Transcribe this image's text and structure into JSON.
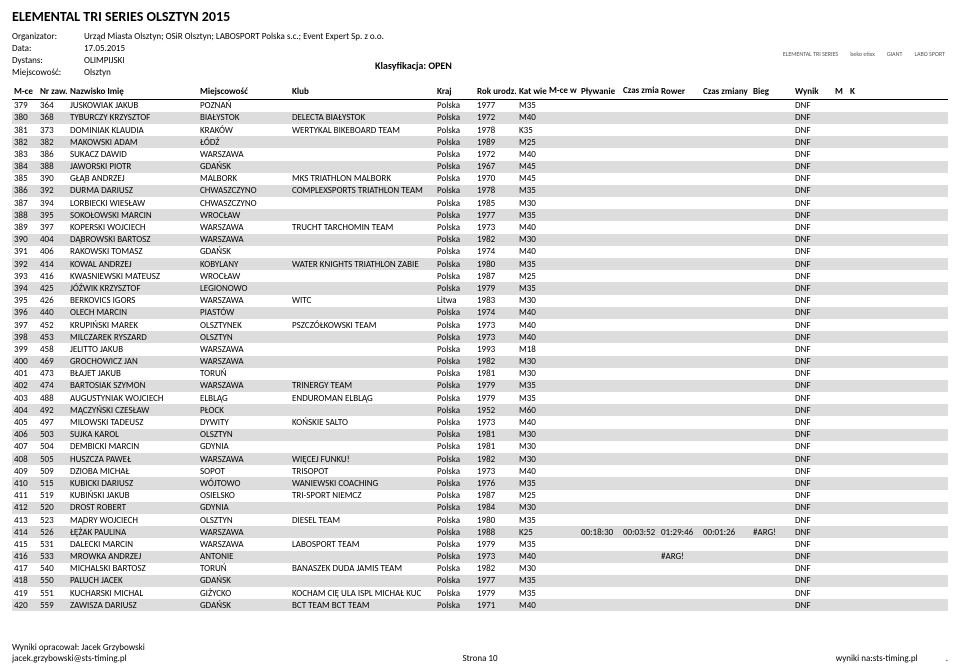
{
  "title": "ELEMENTAL TRI SERIES OLSZTYN 2015",
  "meta": {
    "organizator_label": "Organizator:",
    "organizator": "Urząd Miasta Olsztyn; OSiR Olsztyn; LABOSPORT Polska s.c.; Event Expert Sp. z o.o.",
    "data_label": "Data:",
    "data": "17.05.2015",
    "dystans_label": "Dystans:",
    "dystans": "OLIMPIJSKI",
    "miejscowosc_label": "Miejscowość:",
    "miejscowosc": "Olsztyn",
    "klasyfikacja_label": "Klasyfikacja:",
    "klasyfikacja": "OPEN"
  },
  "sponsor_text": [
    "ELEMENTAL TRI SERIES",
    "beko etixx",
    "GIANT",
    "LABO SPORT"
  ],
  "headers": {
    "mce": "M-ce",
    "nrzaw": "Nr zaw.",
    "name": "Nazwisko Imię",
    "city": "Miejscowość",
    "club": "Klub",
    "kraj": "Kraj",
    "rok": "Rok urodz.",
    "kat": "Kat wiek.",
    "mcekat": "M-ce w kat",
    "plyw": "Pływanie",
    "czz": "Czas zmiany",
    "rower": "Rower",
    "czz2": "Czas zmiany",
    "bieg": "Bieg",
    "wynik": "Wynik",
    "m": "M",
    "k": "K"
  },
  "rows": [
    {
      "mce": "379",
      "nr": "364",
      "name": "JUSKOWIAK JAKUB",
      "city": "POZNAŃ",
      "club": "",
      "kraj": "Polska",
      "rok": "1977",
      "kat": "M35",
      "wynik": "DNF"
    },
    {
      "mce": "380",
      "nr": "368",
      "name": "TYBURCZY KRZYSZTOF",
      "city": "BIAŁYSTOK",
      "club": "DELECTA BIAŁYSTOK",
      "kraj": "Polska",
      "rok": "1972",
      "kat": "M40",
      "wynik": "DNF"
    },
    {
      "mce": "381",
      "nr": "373",
      "name": "DOMINIAK KLAUDIA",
      "city": "KRAKÓW",
      "club": "WERTYKAL BIKEBOARD TEAM",
      "kraj": "Polska",
      "rok": "1978",
      "kat": "K35",
      "wynik": "DNF"
    },
    {
      "mce": "382",
      "nr": "382",
      "name": "MAKOWSKI ADAM",
      "city": "ŁÓDŹ",
      "club": "",
      "kraj": "Polska",
      "rok": "1989",
      "kat": "M25",
      "wynik": "DNF"
    },
    {
      "mce": "383",
      "nr": "386",
      "name": "SUKACZ DAWID",
      "city": "WARSZAWA",
      "club": "",
      "kraj": "Polska",
      "rok": "1972",
      "kat": "M40",
      "wynik": "DNF"
    },
    {
      "mce": "384",
      "nr": "388",
      "name": "JAWORSKI PIOTR",
      "city": "GDAŃSK",
      "club": "",
      "kraj": "Polska",
      "rok": "1967",
      "kat": "M45",
      "wynik": "DNF"
    },
    {
      "mce": "385",
      "nr": "390",
      "name": "GŁĄB ANDRZEJ",
      "city": "MALBORK",
      "club": "MKS TRIATHLON MALBORK",
      "kraj": "Polska",
      "rok": "1970",
      "kat": "M45",
      "wynik": "DNF"
    },
    {
      "mce": "386",
      "nr": "392",
      "name": "DURMA DARIUSZ",
      "city": "CHWASZCZYNO",
      "club": "COMPLEXSPORTS TRIATHLON TEAM",
      "kraj": "Polska",
      "rok": "1978",
      "kat": "M35",
      "wynik": "DNF"
    },
    {
      "mce": "387",
      "nr": "394",
      "name": "LORBIECKI WIESŁAW",
      "city": "CHWASZCZYNO",
      "club": "",
      "kraj": "Polska",
      "rok": "1985",
      "kat": "M30",
      "wynik": "DNF"
    },
    {
      "mce": "388",
      "nr": "395",
      "name": "SOKOŁOWSKI MARCIN",
      "city": "WROCŁAW",
      "club": "",
      "kraj": "Polska",
      "rok": "1977",
      "kat": "M35",
      "wynik": "DNF"
    },
    {
      "mce": "389",
      "nr": "397",
      "name": "KOPERSKI WOJCIECH",
      "city": "WARSZAWA",
      "club": "TRUCHT TARCHOMIN TEAM",
      "kraj": "Polska",
      "rok": "1973",
      "kat": "M40",
      "wynik": "DNF"
    },
    {
      "mce": "390",
      "nr": "404",
      "name": "DĄBROWSKI BARTOSZ",
      "city": "WARSZAWA",
      "club": "",
      "kraj": "Polska",
      "rok": "1982",
      "kat": "M30",
      "wynik": "DNF"
    },
    {
      "mce": "391",
      "nr": "406",
      "name": "RAKOWSKI TOMASZ",
      "city": "GDAŃSK",
      "club": "",
      "kraj": "Polska",
      "rok": "1974",
      "kat": "M40",
      "wynik": "DNF"
    },
    {
      "mce": "392",
      "nr": "414",
      "name": "KOWAL ANDRZEJ",
      "city": "KOBYLANY",
      "club": "WATER KNIGHTS TRIATHLON ZABIE",
      "kraj": "Polska",
      "rok": "1980",
      "kat": "M35",
      "wynik": "DNF"
    },
    {
      "mce": "393",
      "nr": "416",
      "name": "KWASNIEWSKI MATEUSZ",
      "city": "WROCŁAW",
      "club": "",
      "kraj": "Polska",
      "rok": "1987",
      "kat": "M25",
      "wynik": "DNF"
    },
    {
      "mce": "394",
      "nr": "425",
      "name": "JÓŹWIK KRZYSZTOF",
      "city": "LEGIONOWO",
      "club": "",
      "kraj": "Polska",
      "rok": "1979",
      "kat": "M35",
      "wynik": "DNF"
    },
    {
      "mce": "395",
      "nr": "426",
      "name": "BERKOVICS IGORS",
      "city": "WARSZAWA",
      "club": "WITC",
      "kraj": "Litwa",
      "rok": "1983",
      "kat": "M30",
      "wynik": "DNF"
    },
    {
      "mce": "396",
      "nr": "440",
      "name": "OLECH MARCIN",
      "city": "PIASTÓW",
      "club": "",
      "kraj": "Polska",
      "rok": "1974",
      "kat": "M40",
      "wynik": "DNF"
    },
    {
      "mce": "397",
      "nr": "452",
      "name": "KRUPIŃSKI MAREK",
      "city": "OLSZTYNEK",
      "club": "PSZCZÓŁKOWSKI TEAM",
      "kraj": "Polska",
      "rok": "1973",
      "kat": "M40",
      "wynik": "DNF"
    },
    {
      "mce": "398",
      "nr": "453",
      "name": "MILCZAREK RYSZARD",
      "city": "OLSZTYN",
      "club": "",
      "kraj": "Polska",
      "rok": "1973",
      "kat": "M40",
      "wynik": "DNF"
    },
    {
      "mce": "399",
      "nr": "458",
      "name": "JELITTO JAKUB",
      "city": "WARSZAWA",
      "club": "",
      "kraj": "Polska",
      "rok": "1993",
      "kat": "M18",
      "wynik": "DNF"
    },
    {
      "mce": "400",
      "nr": "469",
      "name": "GROCHOWICZ JAN",
      "city": "WARSZAWA",
      "club": "",
      "kraj": "Polska",
      "rok": "1982",
      "kat": "M30",
      "wynik": "DNF"
    },
    {
      "mce": "401",
      "nr": "473",
      "name": "BŁAJET JAKUB",
      "city": "TORUŃ",
      "club": "",
      "kraj": "Polska",
      "rok": "1981",
      "kat": "M30",
      "wynik": "DNF"
    },
    {
      "mce": "402",
      "nr": "474",
      "name": "BARTOSIAK SZYMON",
      "city": "WARSZAWA",
      "club": "TRINERGY TEAM",
      "kraj": "Polska",
      "rok": "1979",
      "kat": "M35",
      "wynik": "DNF"
    },
    {
      "mce": "403",
      "nr": "488",
      "name": "AUGUSTYNIAK WOJCIECH",
      "city": "ELBLĄG",
      "club": "ENDUROMAN ELBLĄG",
      "kraj": "Polska",
      "rok": "1979",
      "kat": "M35",
      "wynik": "DNF"
    },
    {
      "mce": "404",
      "nr": "492",
      "name": "MĄCZYŃSKI CZESŁAW",
      "city": "PŁOCK",
      "club": "",
      "kraj": "Polska",
      "rok": "1952",
      "kat": "M60",
      "wynik": "DNF"
    },
    {
      "mce": "405",
      "nr": "497",
      "name": "MILOWSKI TADEUSZ",
      "city": "DYWITY",
      "club": "KOŃSKIE SALTO",
      "kraj": "Polska",
      "rok": "1973",
      "kat": "M40",
      "wynik": "DNF"
    },
    {
      "mce": "406",
      "nr": "503",
      "name": "SUJKA KAROL",
      "city": "OLSZTYN",
      "club": "",
      "kraj": "Polska",
      "rok": "1981",
      "kat": "M30",
      "wynik": "DNF"
    },
    {
      "mce": "407",
      "nr": "504",
      "name": "DEMBICKI MARCIN",
      "city": "GDYNIA",
      "club": "",
      "kraj": "Polska",
      "rok": "1981",
      "kat": "M30",
      "wynik": "DNF"
    },
    {
      "mce": "408",
      "nr": "505",
      "name": "HUSZCZA PAWEŁ",
      "city": "WARSZAWA",
      "club": "WIĘCEJ FUNKU!",
      "kraj": "Polska",
      "rok": "1982",
      "kat": "M30",
      "wynik": "DNF"
    },
    {
      "mce": "409",
      "nr": "509",
      "name": "DZIOBA MICHAŁ",
      "city": "SOPOT",
      "club": "TRISOPOT",
      "kraj": "Polska",
      "rok": "1973",
      "kat": "M40",
      "wynik": "DNF"
    },
    {
      "mce": "410",
      "nr": "515",
      "name": "KUBICKI DARIUSZ",
      "city": "WÓJTOWO",
      "club": "WANIEWSKI COACHING",
      "kraj": "Polska",
      "rok": "1976",
      "kat": "M35",
      "wynik": "DNF"
    },
    {
      "mce": "411",
      "nr": "519",
      "name": "KUBIŃSKI JAKUB",
      "city": "OSIELSKO",
      "club": "TRI-SPORT NIEMCZ",
      "kraj": "Polska",
      "rok": "1987",
      "kat": "M25",
      "wynik": "DNF"
    },
    {
      "mce": "412",
      "nr": "520",
      "name": "DROST ROBERT",
      "city": "GDYNIA",
      "club": "",
      "kraj": "Polska",
      "rok": "1984",
      "kat": "M30",
      "wynik": "DNF"
    },
    {
      "mce": "413",
      "nr": "523",
      "name": "MĄDRY WOJCIECH",
      "city": "OLSZTYN",
      "club": "DIESEL TEAM",
      "kraj": "Polska",
      "rok": "1980",
      "kat": "M35",
      "wynik": "DNF"
    },
    {
      "mce": "414",
      "nr": "526",
      "name": "ŁĘŻAK PAULINA",
      "city": "WARSZAWA",
      "club": "",
      "kraj": "Polska",
      "rok": "1988",
      "kat": "K25",
      "plyw": "00:18:30",
      "czz": "00:03:52",
      "rower": "01:29:46",
      "czz2": "00:01:26",
      "bieg": "#ARG!",
      "wynik": "DNF"
    },
    {
      "mce": "415",
      "nr": "531",
      "name": "DALECKI MARCIN",
      "city": "WARSZAWA",
      "club": "LABOSPORT TEAM",
      "kraj": "Polska",
      "rok": "1979",
      "kat": "M35",
      "wynik": "DNF"
    },
    {
      "mce": "416",
      "nr": "533",
      "name": "MROWKA ANDRZEJ",
      "city": "ANTONIE",
      "club": "",
      "kraj": "Polska",
      "rok": "1973",
      "kat": "M40",
      "rower": "#ARG!",
      "wynik": "DNF"
    },
    {
      "mce": "417",
      "nr": "540",
      "name": "MICHALSKI BARTOSZ",
      "city": "TORUŃ",
      "club": "BANASZEK DUDA JAMIS TEAM",
      "kraj": "Polska",
      "rok": "1982",
      "kat": "M30",
      "wynik": "DNF"
    },
    {
      "mce": "418",
      "nr": "550",
      "name": "PALUCH JACEK",
      "city": "GDAŃSK",
      "club": "",
      "kraj": "Polska",
      "rok": "1977",
      "kat": "M35",
      "wynik": "DNF"
    },
    {
      "mce": "419",
      "nr": "551",
      "name": "KUCHARSKI MICHAL",
      "city": "GIŻYCKO",
      "club": "KOCHAM CIĘ ULA ISPL MICHAŁ KUC",
      "kraj": "Polska",
      "rok": "1979",
      "kat": "M35",
      "wynik": "DNF"
    },
    {
      "mce": "420",
      "nr": "559",
      "name": "ZAWISZA DARIUSZ",
      "city": "GDAŃSK",
      "club": "BCT TEAM BCT TEAM",
      "kraj": "Polska",
      "rok": "1971",
      "kat": "M40",
      "wynik": "DNF"
    }
  ],
  "footer": {
    "left1": "Wyniki opracował: Jacek Grzybowski",
    "left2": "jacek.grzybowski@sts-timing.pl",
    "center": "Strona 10",
    "right": "wyniki na:sts-timing.pl",
    "dot": "."
  },
  "colors": {
    "alt_row": "#dddddd",
    "text": "#000000",
    "bg": "#ffffff"
  }
}
